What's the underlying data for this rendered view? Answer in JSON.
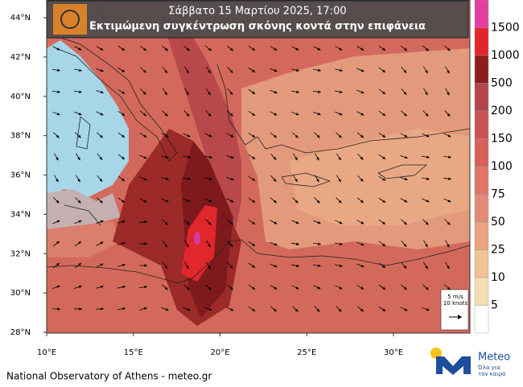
{
  "header": {
    "date": "Σάββατο 15 Μαρτίου 2025, 17:00",
    "title": "Εκτιμώμενη συγκέντρωση σκόνης κοντά στην επιφάνεια"
  },
  "map": {
    "lat_labels": [
      "44°N",
      "42°N",
      "40°N",
      "38°N",
      "36°N",
      "34°N",
      "32°N",
      "30°N",
      "28°N"
    ],
    "lon_labels": [
      "10°E",
      "15°E",
      "20°E",
      "25°E",
      "30°E"
    ]
  },
  "legend": {
    "levels": [
      1500,
      1000,
      500,
      200,
      150,
      100,
      75,
      50,
      25,
      10,
      5
    ],
    "colors": [
      "#e33fa3",
      "#e2262c",
      "#8e1c1e",
      "#b2464a",
      "#c95352",
      "#d6625a",
      "#df7668",
      "#e28a79",
      "#e9a282",
      "#f1c294",
      "#f5ddb2",
      "#ffffff"
    ]
  },
  "wind_key": {
    "speed": "5 m/s",
    "knots": "10 knots"
  },
  "footer": {
    "credit": "National Observatory of Athens - meteo.gr",
    "brand": "Meteo",
    "slogan_1": "Όλα για",
    "slogan_2": "τον καιρό"
  }
}
